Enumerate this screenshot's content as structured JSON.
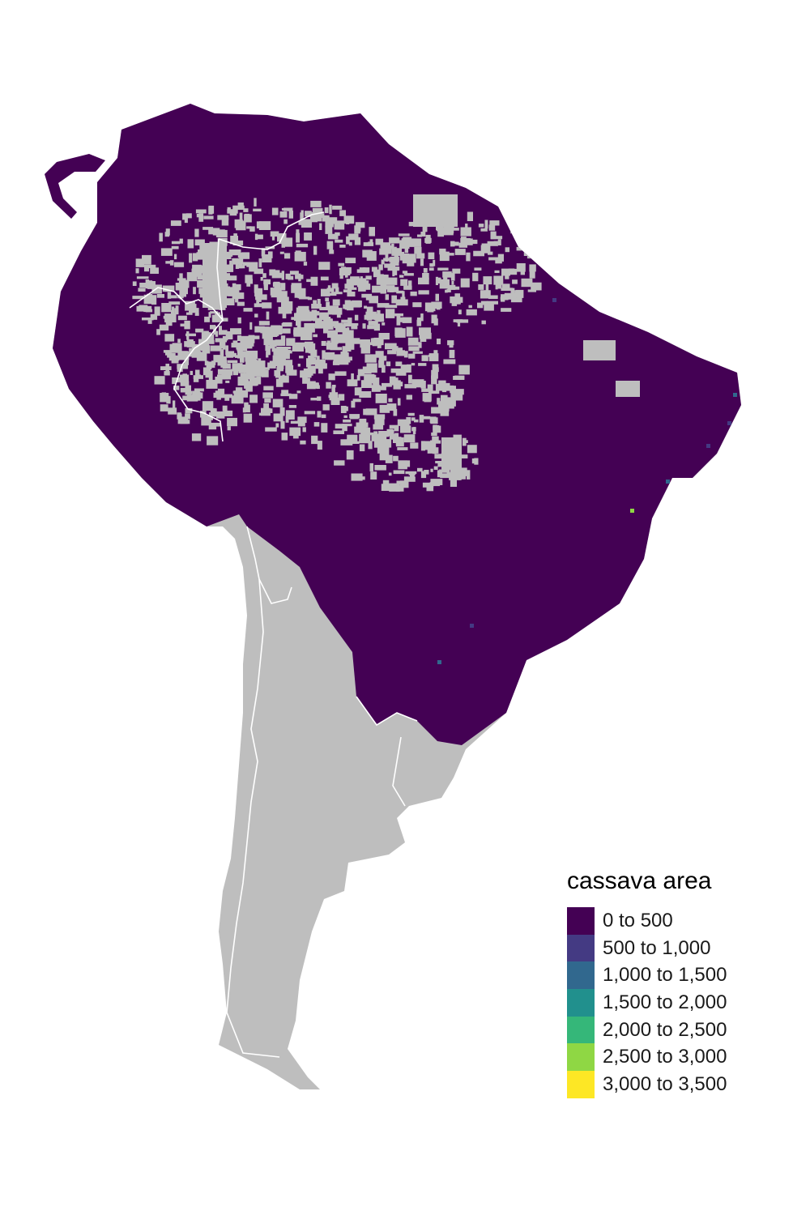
{
  "map": {
    "region": "South America",
    "land_color": "#bebebe",
    "border_color": "#ffffff",
    "no_data_color": "#bebebe",
    "dominant_class": "0 to 500",
    "hotspot_classes_present": [
      "500 to 1,000",
      "1,000 to 1,500",
      "2,500 to 3,000"
    ]
  },
  "legend": {
    "title": "cassava area",
    "items": [
      {
        "label": "0 to 500",
        "color": "#440154"
      },
      {
        "label": "500 to 1,000",
        "color": "#443a83"
      },
      {
        "label": "1,000 to 1,500",
        "color": "#31688e"
      },
      {
        "label": "1,500 to 2,000",
        "color": "#21908d"
      },
      {
        "label": "2,000 to 2,500",
        "color": "#35b779"
      },
      {
        "label": "2,500 to 3,000",
        "color": "#8fd744"
      },
      {
        "label": "3,000 to 3,500",
        "color": "#fde725"
      }
    ]
  }
}
